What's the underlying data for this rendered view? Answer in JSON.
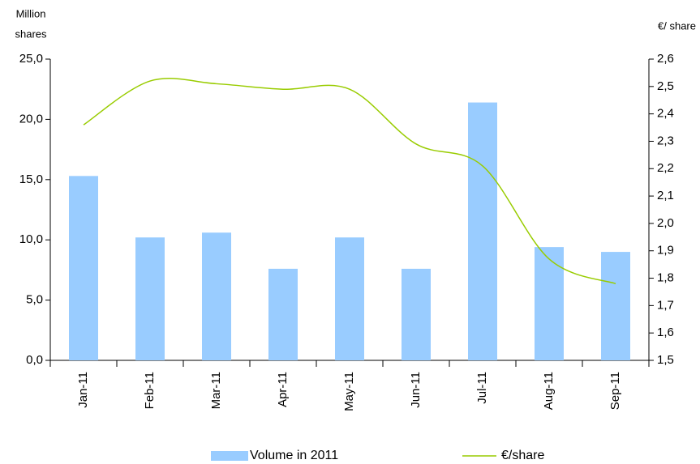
{
  "chart_data": {
    "type": "bar-line",
    "ylabel": [
      "Million",
      "shares"
    ],
    "y2label": "€/ share",
    "categories": [
      "Jan-11",
      "Feb-11",
      "Mar-11",
      "Apr-11",
      "May-11",
      "Jun-11",
      "Jul-11",
      "Aug-11",
      "Sep-11"
    ],
    "series": [
      {
        "name": "Volume in 2011",
        "type": "bar",
        "color": "#99ccff",
        "values": [
          15.3,
          10.2,
          10.6,
          7.6,
          10.2,
          7.6,
          21.4,
          9.4,
          9.0
        ]
      },
      {
        "name": "€/share",
        "type": "line",
        "axis": "y2",
        "color": "#99cc00",
        "values": [
          2.36,
          2.52,
          2.51,
          2.49,
          2.49,
          2.29,
          2.21,
          1.87,
          1.78
        ]
      }
    ],
    "ylim": [
      0,
      25
    ],
    "yticks": [
      {
        "value": 0,
        "label": "0,0"
      },
      {
        "value": 5,
        "label": "5,0"
      },
      {
        "value": 10,
        "label": "10,0"
      },
      {
        "value": 15,
        "label": "15,0"
      },
      {
        "value": 20,
        "label": "20,0"
      },
      {
        "value": 25,
        "label": "25,0"
      }
    ],
    "y2lim": [
      1.5,
      2.6
    ],
    "y2ticks": [
      {
        "value": 1.5,
        "label": "1,5"
      },
      {
        "value": 1.6,
        "label": "1,6"
      },
      {
        "value": 1.7,
        "label": "1,7"
      },
      {
        "value": 1.8,
        "label": "1,8"
      },
      {
        "value": 1.9,
        "label": "1,9"
      },
      {
        "value": 2.0,
        "label": "2,0"
      },
      {
        "value": 2.1,
        "label": "2,1"
      },
      {
        "value": 2.2,
        "label": "2,2"
      },
      {
        "value": 2.3,
        "label": "2,3"
      },
      {
        "value": 2.4,
        "label": "2,4"
      },
      {
        "value": 2.5,
        "label": "2,5"
      },
      {
        "value": 2.6,
        "label": "2,6"
      }
    ],
    "grid": false,
    "legend": "bottom"
  }
}
